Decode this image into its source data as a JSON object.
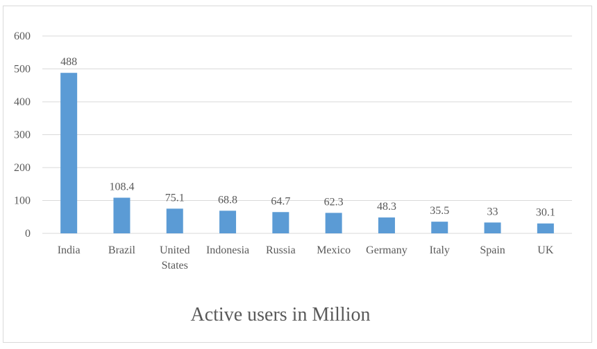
{
  "chart_data": {
    "type": "bar",
    "title": "Active users in Million",
    "categories": [
      "India",
      "Brazil",
      "United States",
      "Indonesia",
      "Russia",
      "Mexico",
      "Germany",
      "Italy",
      "Spain",
      "UK"
    ],
    "category_lines": [
      [
        "India"
      ],
      [
        "Brazil"
      ],
      [
        "United",
        "States"
      ],
      [
        "Indonesia"
      ],
      [
        "Russia"
      ],
      [
        "Mexico"
      ],
      [
        "Germany"
      ],
      [
        "Italy"
      ],
      [
        "Spain"
      ],
      [
        "UK"
      ]
    ],
    "values": [
      488,
      108.4,
      75.1,
      68.8,
      64.7,
      62.3,
      48.3,
      35.5,
      33,
      30.1
    ],
    "data_labels": [
      "488",
      "108.4",
      "75.1",
      "68.8",
      "64.7",
      "62.3",
      "48.3",
      "35.5",
      "33",
      "30.1"
    ],
    "y_ticks": [
      0,
      100,
      200,
      300,
      400,
      500,
      600
    ],
    "ylim": [
      0,
      600
    ],
    "xlabel": "",
    "ylabel": "",
    "grid": true,
    "legend": "none",
    "colors": {
      "bar": "#5b9bd5",
      "grid": "#d9d9d9",
      "axis": "#d9d9d9"
    }
  }
}
